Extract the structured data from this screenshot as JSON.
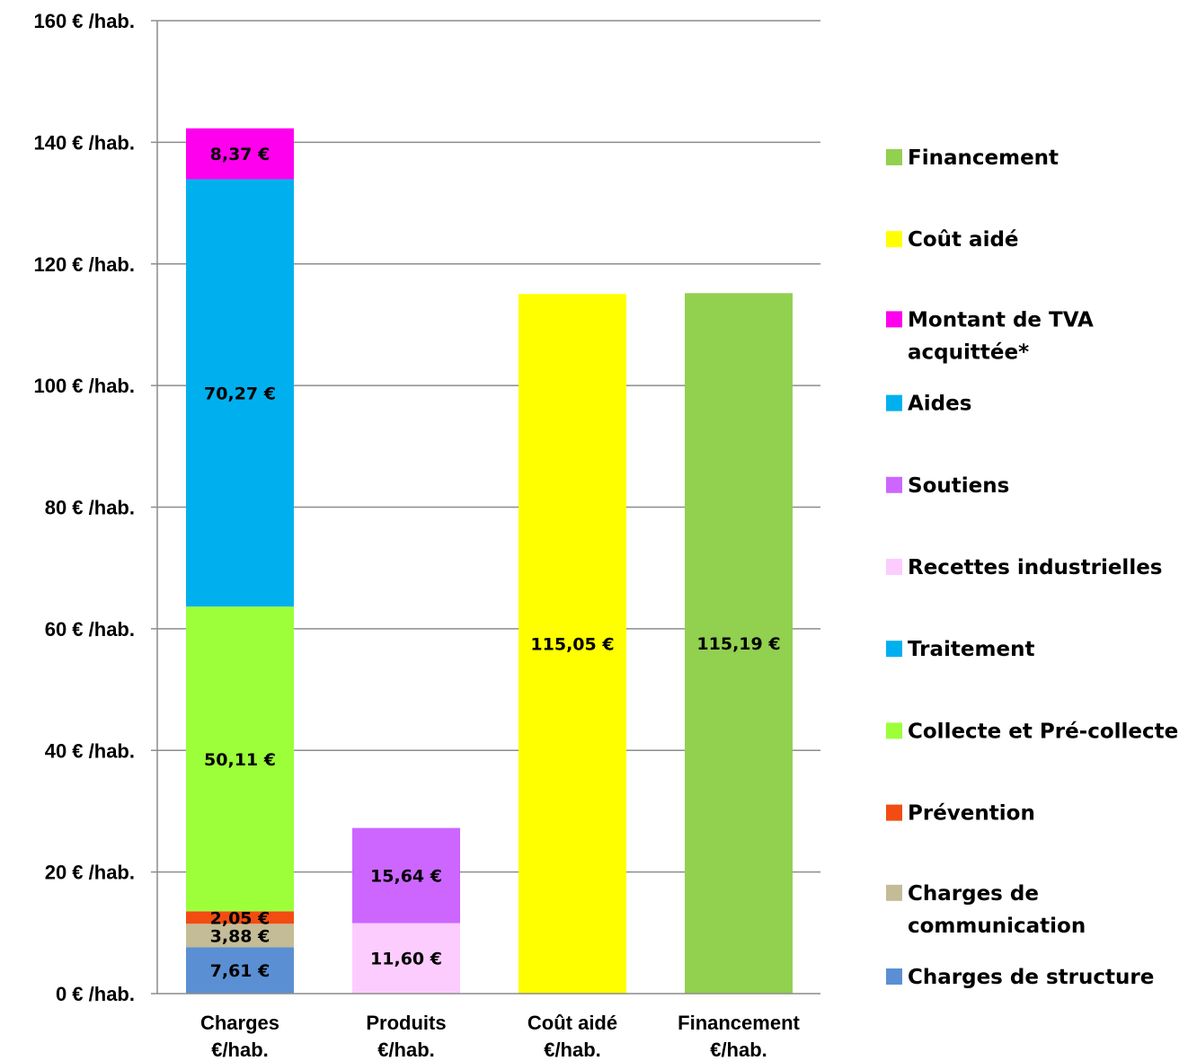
{
  "chart_data": {
    "type": "bar",
    "stacked": true,
    "categories": [
      "Charges\n€/hab.",
      "Produits\n€/hab.",
      "Coût aidé\n€/hab.",
      "Financement\n€/hab."
    ],
    "series": [
      {
        "name": "Charges de structure",
        "color": "#5b8fd3",
        "values": [
          7.61,
          0,
          0,
          0
        ],
        "labels": [
          "7,61 €",
          "",
          "",
          ""
        ]
      },
      {
        "name": "Charges de communication",
        "color": "#c4bc96",
        "values": [
          3.88,
          0,
          0,
          0
        ],
        "labels": [
          "3,88 €",
          "",
          "",
          ""
        ]
      },
      {
        "name": "Prévention",
        "color": "#f24c12",
        "values": [
          2.05,
          0,
          0,
          0
        ],
        "labels": [
          "2,05 €",
          "",
          "",
          ""
        ]
      },
      {
        "name": "Collecte et Pré-collecte",
        "color": "#9cff3a",
        "values": [
          50.11,
          0,
          0,
          0
        ],
        "labels": [
          "50,11 €",
          "",
          "",
          ""
        ]
      },
      {
        "name": "Traitement",
        "color": "#00b0ee",
        "values": [
          0,
          0,
          0,
          0
        ],
        "labels": [
          "",
          "",
          "",
          ""
        ]
      },
      {
        "name": "Recettes industrielles",
        "color": "#fdccff",
        "values": [
          0,
          11.6,
          0,
          0
        ],
        "labels": [
          "",
          "11,60 €",
          "",
          ""
        ]
      },
      {
        "name": "Soutiens",
        "color": "#cc66ff",
        "values": [
          0,
          15.64,
          0,
          0
        ],
        "labels": [
          "",
          "15,64 €",
          "",
          ""
        ]
      },
      {
        "name": "Aides",
        "color": "#00b0ee",
        "values": [
          70.27,
          0,
          0,
          0
        ],
        "labels": [
          "70,27 €",
          "",
          "",
          ""
        ]
      },
      {
        "name": "Montant de TVA acquittée*",
        "color": "#ff00ee",
        "values": [
          8.37,
          0,
          0,
          0
        ],
        "labels": [
          "8,37 €",
          "",
          "",
          ""
        ]
      },
      {
        "name": "Coût aidé",
        "color": "#ffff00",
        "values": [
          0,
          0,
          115.05,
          0
        ],
        "labels": [
          "",
          "",
          "115,05 €",
          ""
        ]
      },
      {
        "name": "Financement",
        "color": "#92d050",
        "values": [
          0,
          0,
          0,
          115.19
        ],
        "labels": [
          "",
          "",
          "",
          "115,19 €"
        ]
      }
    ],
    "ylim": [
      0,
      160
    ],
    "yticks": [
      0,
      20,
      40,
      60,
      80,
      100,
      120,
      140,
      160
    ],
    "ytick_labels": [
      "0 € /hab.",
      "20 € /hab.",
      "40 € /hab.",
      "60 € /hab.",
      "80 € /hab.",
      "100 € /hab.",
      "120 € /hab.",
      "140 € /hab.",
      "160 € /hab."
    ],
    "grid": true,
    "legend_position": "right",
    "legend": [
      {
        "label": "Financement",
        "color": "#92d050"
      },
      {
        "label": "Coût aidé",
        "color": "#ffff00"
      },
      {
        "label": "Montant de TVA\nacquittée*",
        "color": "#ff00ee"
      },
      {
        "label": "Aides",
        "color": "#00b0ee"
      },
      {
        "label": "Soutiens",
        "color": "#cc66ff"
      },
      {
        "label": "Recettes industrielles",
        "color": "#fdccff"
      },
      {
        "label": "Traitement",
        "color": "#00b0ee"
      },
      {
        "label": "Collecte et Pré-collecte",
        "color": "#9cff3a"
      },
      {
        "label": "Prévention",
        "color": "#f24c12"
      },
      {
        "label": "Charges de\ncommunication",
        "color": "#c4bc96"
      },
      {
        "label": "Charges de structure",
        "color": "#5b8fd3"
      }
    ]
  }
}
